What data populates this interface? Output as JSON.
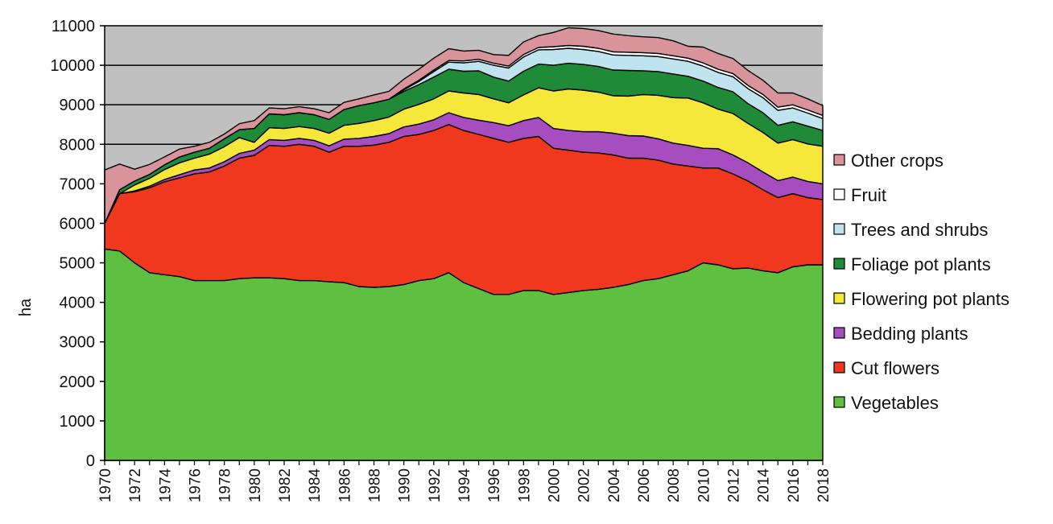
{
  "chart_data": {
    "type": "area",
    "stacked": true,
    "xlabel": "",
    "ylabel": "ha",
    "ylim": [
      0,
      11000
    ],
    "xlim": [
      1970,
      2018
    ],
    "y_ticks": [
      0,
      1000,
      2000,
      3000,
      4000,
      5000,
      6000,
      7000,
      8000,
      9000,
      10000,
      11000
    ],
    "x_tick_labels": [
      "1970",
      "1972",
      "1974",
      "1976",
      "1978",
      "1980",
      "1982",
      "1984",
      "1986",
      "1988",
      "1990",
      "1992",
      "1994",
      "1996",
      "1998",
      "2000",
      "2002",
      "2004",
      "2006",
      "2008",
      "2010",
      "2012",
      "2014",
      "2016",
      "2018"
    ],
    "grid": "horizontal",
    "plot_background": "#c0c0c0",
    "legend_position": "right",
    "x": [
      1970,
      1971,
      1972,
      1973,
      1974,
      1975,
      1976,
      1977,
      1978,
      1979,
      1980,
      1981,
      1982,
      1983,
      1984,
      1985,
      1986,
      1987,
      1988,
      1989,
      1990,
      1991,
      1992,
      1993,
      1994,
      1995,
      1996,
      1997,
      1998,
      1999,
      2000,
      2001,
      2002,
      2003,
      2004,
      2005,
      2006,
      2007,
      2008,
      2009,
      2010,
      2011,
      2012,
      2013,
      2014,
      2015,
      2016,
      2017,
      2018
    ],
    "series": [
      {
        "name": "Vegetables",
        "color": "#5fbf40",
        "values": [
          5350,
          5300,
          5000,
          4750,
          4700,
          4650,
          4550,
          4550,
          4550,
          4600,
          4620,
          4620,
          4600,
          4550,
          4550,
          4520,
          4500,
          4400,
          4380,
          4400,
          4450,
          4550,
          4600,
          4750,
          4500,
          4350,
          4200,
          4200,
          4300,
          4300,
          4200,
          4250,
          4300,
          4330,
          4380,
          4450,
          4550,
          4600,
          4700,
          4800,
          5000,
          4950,
          4850,
          4870,
          4800,
          4750,
          4900,
          4950,
          4950
        ]
      },
      {
        "name": "Cut flowers",
        "color": "#f0381e",
        "values": [
          650,
          1450,
          1800,
          2150,
          2350,
          2500,
          2700,
          2750,
          2900,
          3050,
          3100,
          3350,
          3350,
          3450,
          3400,
          3280,
          3450,
          3550,
          3600,
          3650,
          3750,
          3700,
          3750,
          3750,
          3850,
          3900,
          3950,
          3850,
          3850,
          3900,
          3700,
          3600,
          3500,
          3450,
          3350,
          3200,
          3100,
          3000,
          2800,
          2650,
          2400,
          2450,
          2400,
          2200,
          2050,
          1900,
          1850,
          1700,
          1650
        ]
      },
      {
        "name": "Bedding plants",
        "color": "#a64ec0",
        "values": [
          0,
          0,
          20,
          40,
          60,
          80,
          100,
          100,
          110,
          120,
          130,
          150,
          150,
          150,
          150,
          160,
          180,
          200,
          220,
          220,
          240,
          260,
          270,
          300,
          330,
          360,
          400,
          420,
          450,
          480,
          500,
          500,
          520,
          540,
          550,
          570,
          560,
          540,
          530,
          520,
          500,
          490,
          480,
          460,
          450,
          430,
          420,
          410,
          400
        ]
      },
      {
        "name": "Flowering pot plants",
        "color": "#f5e83a",
        "values": [
          0,
          0,
          150,
          200,
          250,
          300,
          300,
          350,
          380,
          400,
          200,
          300,
          300,
          300,
          300,
          320,
          350,
          380,
          400,
          420,
          450,
          500,
          530,
          550,
          620,
          650,
          600,
          580,
          650,
          750,
          950,
          1050,
          1050,
          1000,
          950,
          1000,
          1050,
          1100,
          1150,
          1200,
          1150,
          1000,
          1050,
          1000,
          1000,
          950,
          950,
          950,
          950
        ]
      },
      {
        "name": "Foliage pot plants",
        "color": "#1f8a38",
        "values": [
          0,
          100,
          100,
          100,
          120,
          150,
          150,
          150,
          200,
          200,
          350,
          350,
          350,
          350,
          350,
          350,
          400,
          450,
          450,
          450,
          450,
          500,
          550,
          550,
          550,
          600,
          550,
          550,
          600,
          600,
          650,
          650,
          650,
          650,
          650,
          650,
          600,
          600,
          600,
          550,
          550,
          550,
          550,
          500,
          500,
          450,
          450,
          450,
          400
        ]
      },
      {
        "name": "Trees and shrubs",
        "color": "#bfe4ef",
        "values": [
          0,
          0,
          0,
          0,
          0,
          0,
          0,
          0,
          0,
          0,
          0,
          0,
          0,
          0,
          0,
          0,
          0,
          0,
          0,
          0,
          40,
          80,
          140,
          180,
          210,
          240,
          300,
          330,
          360,
          360,
          400,
          380,
          380,
          380,
          380,
          380,
          380,
          380,
          380,
          380,
          380,
          380,
          380,
          380,
          380,
          380,
          350,
          330,
          300
        ]
      },
      {
        "name": "Fruit",
        "color": "#ffffff",
        "values": [
          0,
          0,
          0,
          0,
          0,
          0,
          0,
          0,
          0,
          0,
          0,
          0,
          0,
          0,
          0,
          0,
          0,
          0,
          0,
          0,
          20,
          30,
          40,
          40,
          50,
          50,
          50,
          50,
          60,
          60,
          70,
          70,
          80,
          80,
          80,
          80,
          80,
          80,
          80,
          80,
          80,
          80,
          80,
          80,
          80,
          80,
          80,
          80,
          80
        ]
      },
      {
        "name": "Other crops",
        "color": "#d8939b",
        "values": [
          1350,
          650,
          300,
          250,
          200,
          200,
          150,
          150,
          120,
          150,
          200,
          150,
          150,
          150,
          150,
          170,
          180,
          170,
          200,
          200,
          250,
          280,
          300,
          300,
          250,
          230,
          220,
          270,
          320,
          300,
          360,
          450,
          450,
          450,
          450,
          420,
          400,
          400,
          380,
          300,
          400,
          400,
          380,
          380,
          360,
          360,
          300,
          280,
          250
        ]
      }
    ]
  }
}
